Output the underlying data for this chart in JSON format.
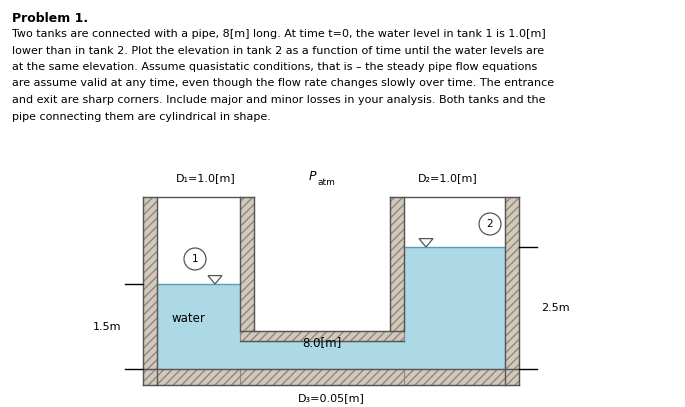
{
  "title": "Problem 1.",
  "para_line1": "Two tanks are connected with a pipe, 8[m] long. At time t=0, the water level in tank 1 is 1.0[m]",
  "para_line2": "lower than in tank 2. Plot the elevation in tank 2 as a function of time until the water levels are",
  "para_line3": "at the same elevation. Assume quasistatic conditions, that is – the steady pipe flow equations",
  "para_line4": "are assume valid at any time, even though the flow rate changes slowly over time. The entrance",
  "para_line5": "and exit are sharp corners. Include major and minor losses in your analysis. Both tanks and the",
  "para_line6": "pipe connecting them are cylindrical in shape.",
  "label_D1": "D₁=1.0[m]",
  "label_Patm_P": "P",
  "label_Patm_sub": "atm",
  "label_D2": "D₂=1.0[m]",
  "label_D3": "D₃=0.05[m]",
  "label_pipe_length": "8.0[m]",
  "label_1_5m": "1.5m",
  "label_2_5m": "2.5m",
  "label_water": "water",
  "water_color": "#add8e6",
  "hatch_facecolor": "#d4c9b8",
  "bg_color": "white"
}
